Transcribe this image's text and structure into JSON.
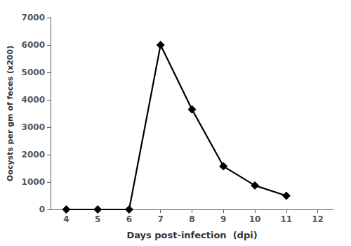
{
  "chart_data": {
    "type": "line",
    "x": [
      4,
      5,
      6,
      7,
      8,
      9,
      10,
      11
    ],
    "values": [
      0,
      0,
      0,
      6000,
      3650,
      1575,
      875,
      500
    ],
    "xlabel": "Days post-infection  (dpi)",
    "ylabel": "Oocysts per gm of feces (x200)",
    "xlim": [
      3.5,
      12.5
    ],
    "ylim": [
      0,
      7000
    ],
    "xticks": [
      4,
      5,
      6,
      7,
      8,
      9,
      10,
      11,
      12
    ],
    "yticks": [
      0,
      1000,
      2000,
      3000,
      4000,
      5000,
      6000,
      7000
    ],
    "color": "#000000",
    "marker": "diamond",
    "grid": false
  }
}
